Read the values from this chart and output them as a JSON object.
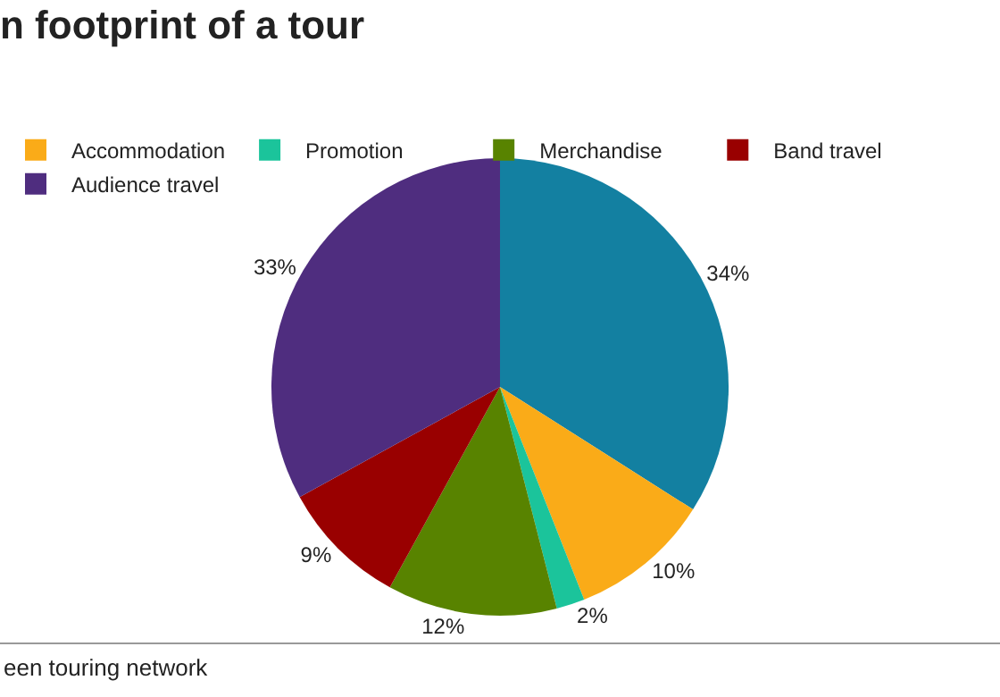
{
  "chart_data": {
    "type": "pie",
    "title": "n footprint of a tour",
    "categories": [
      null,
      "Accommodation",
      "Promotion",
      "Merchandise",
      "Band travel",
      "Audience travel"
    ],
    "values": [
      34,
      10,
      2,
      12,
      9,
      33
    ],
    "value_labels": [
      "34%",
      "10%",
      "2%",
      "12%",
      "9%",
      "33%"
    ],
    "colors": [
      "#1380a1",
      "#faab18",
      "#1bc49b",
      "#588300",
      "#990000",
      "#4f2d7f"
    ],
    "legend": "top left",
    "annotations": [
      "een touring network"
    ]
  }
}
